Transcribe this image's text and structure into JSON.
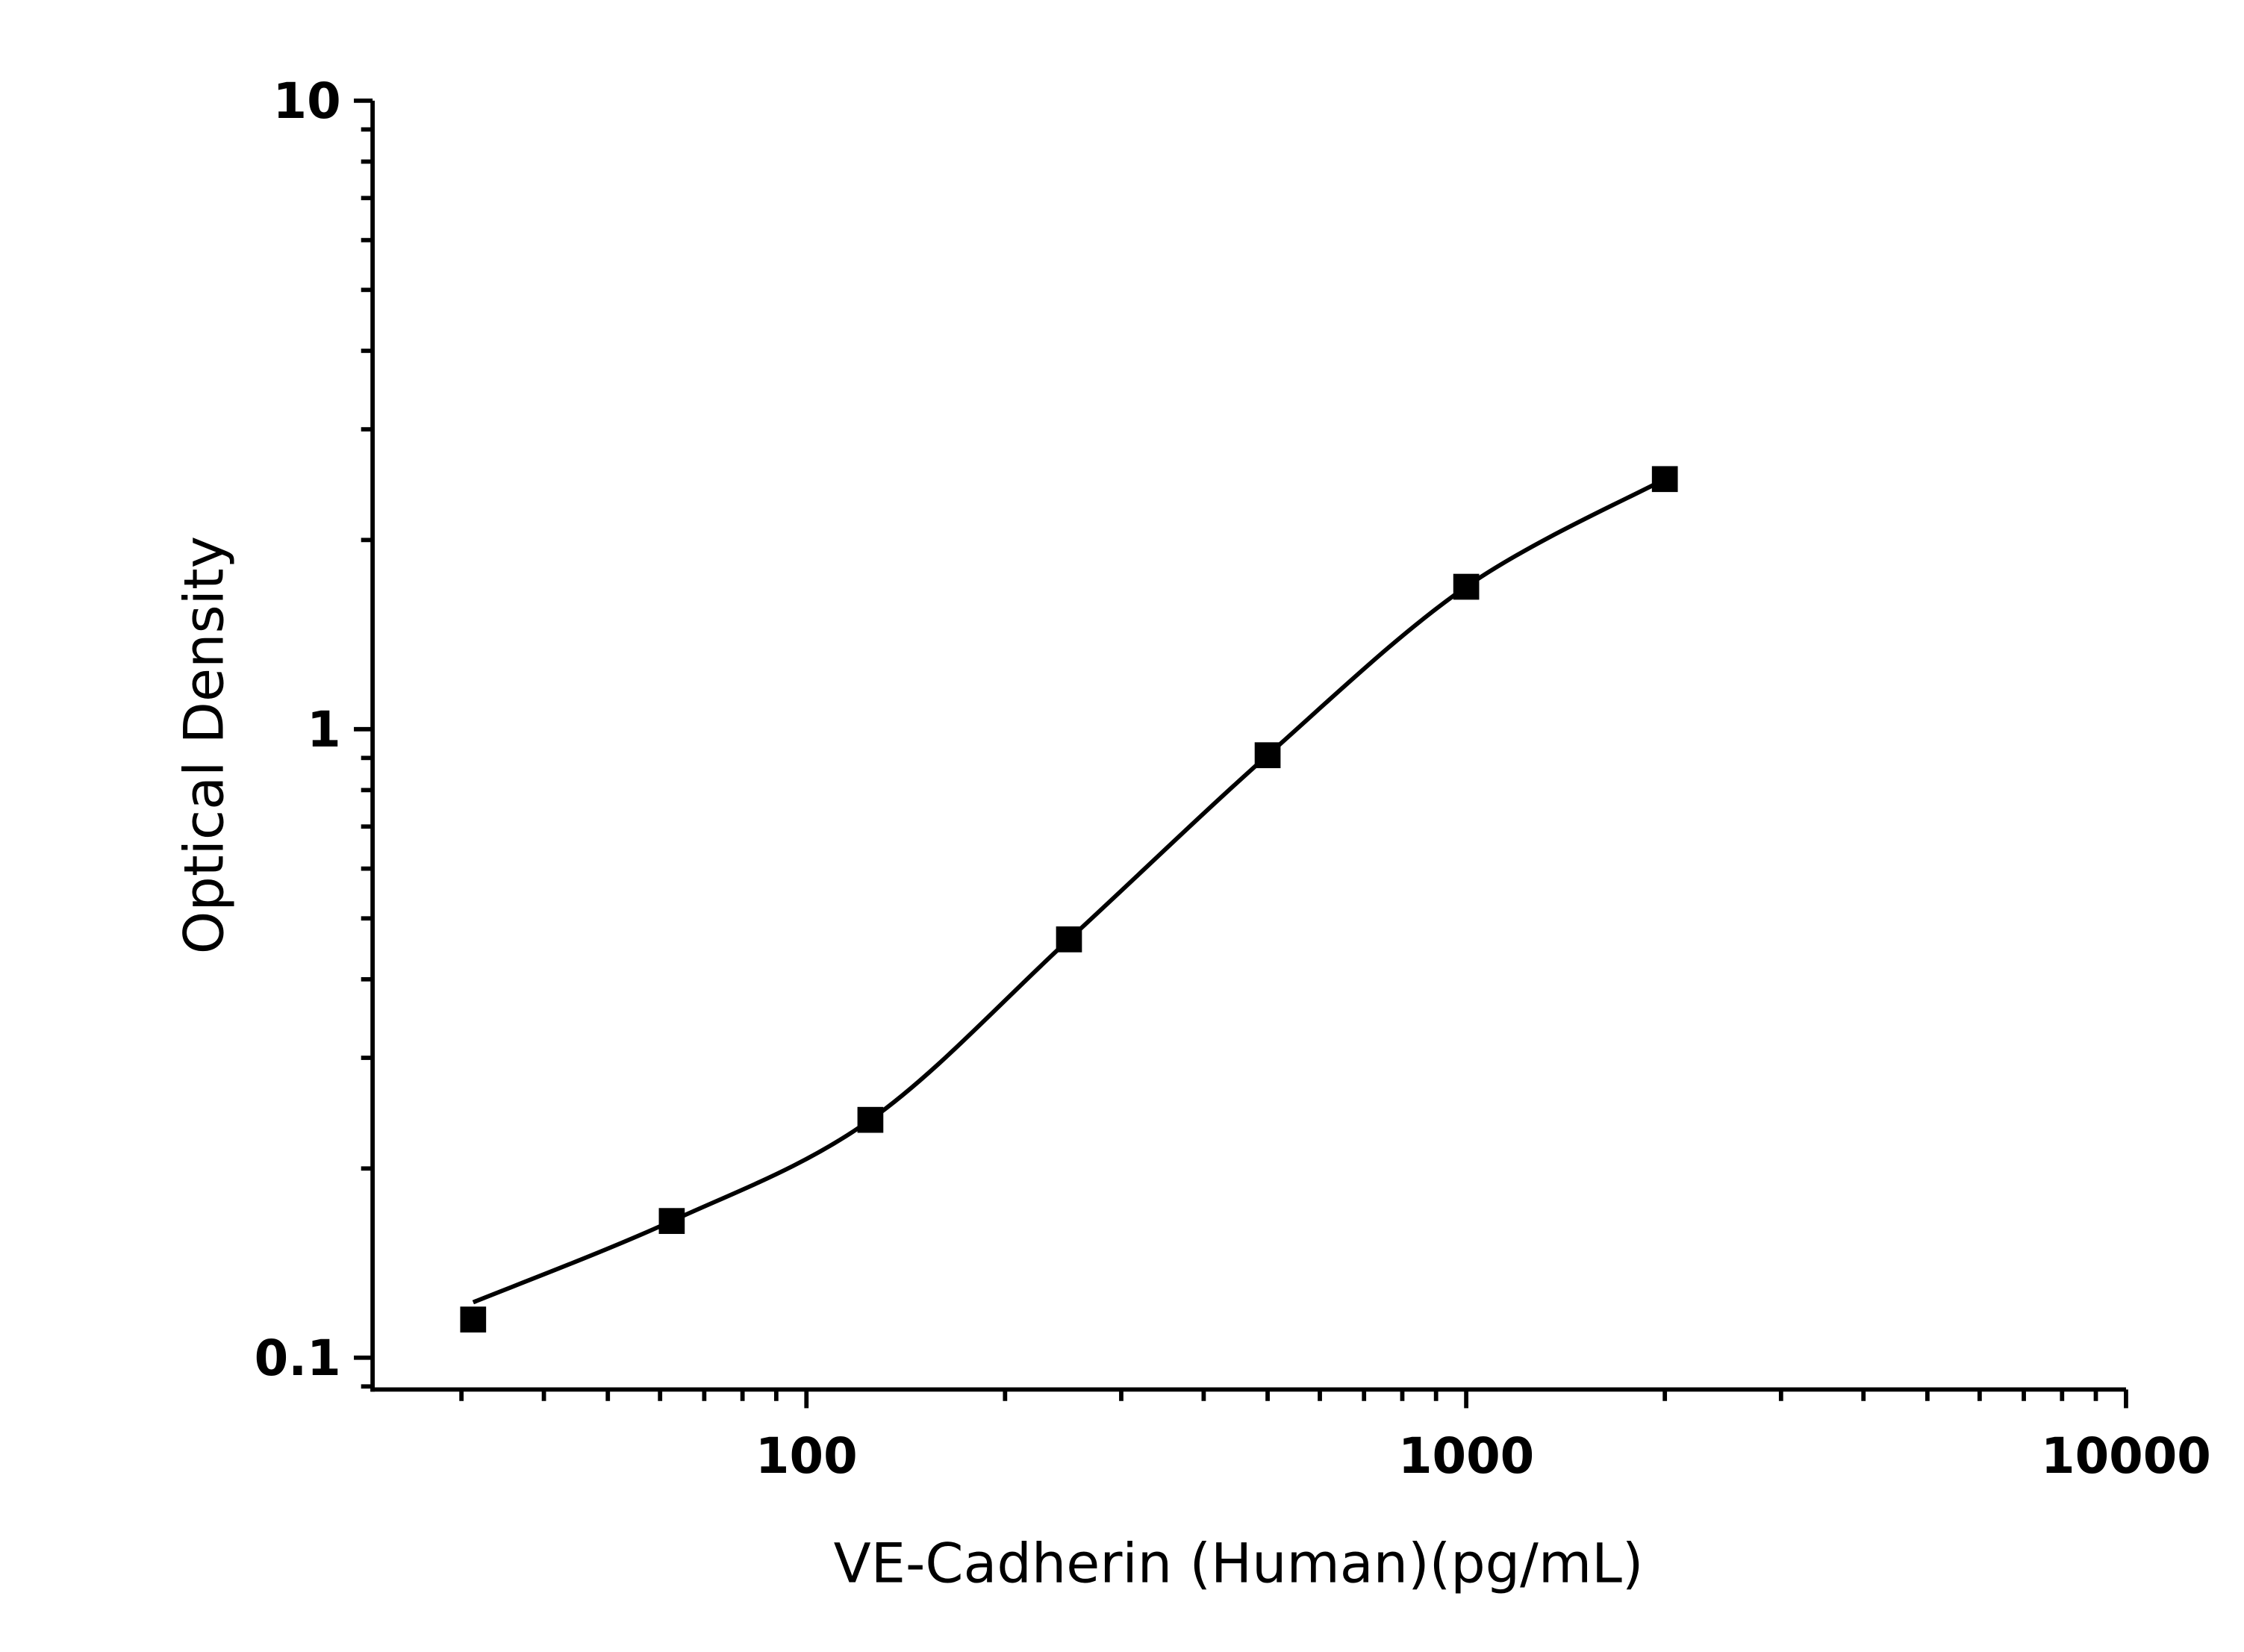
{
  "chart_data": {
    "type": "scatter",
    "title": "",
    "xlabel": "VE-Cadherin (Human)(pg/mL)",
    "ylabel": "Optical Density",
    "x_scale": "log",
    "y_scale": "log",
    "xlim": [
      22,
      10000
    ],
    "ylim": [
      0.089,
      10
    ],
    "x_ticks": [
      100,
      1000,
      10000
    ],
    "x_tick_labels": [
      "100",
      "1000",
      "10000"
    ],
    "y_ticks": [
      0.1,
      1,
      10
    ],
    "y_tick_labels": [
      "0.1",
      "1",
      "10"
    ],
    "grid": false,
    "legend": "none",
    "marker": "square",
    "color": "#000000",
    "fit_curve": true,
    "points": {
      "x": [
        31.25,
        62.5,
        125,
        250,
        500,
        1000,
        2000
      ],
      "y": [
        0.115,
        0.165,
        0.239,
        0.463,
        0.909,
        1.685,
        2.5
      ]
    }
  }
}
